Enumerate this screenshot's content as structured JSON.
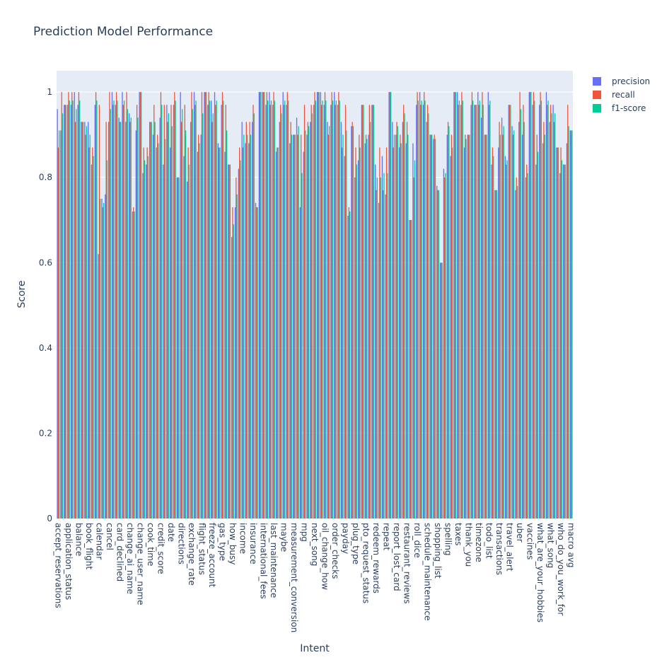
{
  "chart_data": {
    "type": "bar",
    "title": "Prediction Model Performance",
    "xlabel": "Intent",
    "ylabel": "Score",
    "categories": [
      "accept_reservations",
      null,
      null,
      "application_status",
      null,
      null,
      "balance",
      null,
      null,
      "book_flight",
      null,
      null,
      "calendar",
      null,
      null,
      "cancel",
      null,
      null,
      "card_declined",
      null,
      null,
      "change_ai_name",
      null,
      null,
      "change_user_name",
      null,
      null,
      "cook_time",
      null,
      null,
      "credit_score",
      null,
      null,
      "date",
      null,
      null,
      "directions",
      null,
      null,
      "exchange_rate",
      null,
      null,
      "flight_status",
      null,
      null,
      "freeze_account",
      null,
      null,
      "gas_type",
      null,
      null,
      "how_busy",
      null,
      null,
      "income",
      null,
      null,
      "insurance",
      null,
      null,
      "international_fees",
      null,
      null,
      "last_maintenance",
      null,
      null,
      "maybe",
      null,
      null,
      "measurement_conversion",
      null,
      null,
      "mpg",
      null,
      null,
      "next_song",
      null,
      null,
      "oil_change_how",
      null,
      null,
      "order_checks",
      null,
      null,
      "payday",
      null,
      null,
      "plug_type",
      null,
      null,
      "pto_request_status",
      null,
      null,
      "redeem_rewards",
      null,
      null,
      "repeat",
      null,
      null,
      "report_lost_card",
      null,
      null,
      "restaurant_reviews",
      null,
      null,
      "roll_dice",
      null,
      null,
      "schedule_maintenance",
      null,
      null,
      "shopping_list",
      null,
      null,
      "spelling",
      null,
      null,
      "taxes",
      null,
      null,
      "thank_you",
      null,
      null,
      "timezone",
      null,
      null,
      "todo_list",
      null,
      null,
      "transactions",
      null,
      null,
      "travel_alert",
      null,
      null,
      "uber",
      null,
      null,
      "vaccines",
      null,
      null,
      "what_are_your_hobbies",
      null,
      null,
      "what_song",
      null,
      null,
      "who_do_you_work_for",
      null,
      null,
      "macro avg"
    ],
    "series": [
      {
        "name": "precision",
        "color": "#636efa",
        "values": [
          0.96,
          0.91,
          0.97,
          0.97,
          0.97,
          1,
          0.97,
          0.93,
          0.93,
          0.93,
          0.83,
          0.97,
          0.62,
          0.75,
          0.76,
          0.93,
          1,
          0.97,
          0.94,
          1,
          0.93,
          0.95,
          0.72,
          0.91,
          1,
          0.81,
          0.83,
          0.93,
          0.9,
          0.87,
          0.94,
          0.83,
          0.97,
          0.87,
          0.97,
          0.8,
          1,
          0.85,
          0.79,
          0.93,
          1,
          0.86,
          0.9,
          1,
          0.97,
          0.98,
          1,
          0.88,
          0.97,
          0.86,
          0.83,
          0.66,
          0.73,
          0.82,
          0.93,
          0.88,
          0.88,
          0.93,
          0.74,
          1,
          1,
          0.97,
          1,
          0.97,
          0.86,
          0.93,
          1,
          0.97,
          0.88,
          0.9,
          0.94,
          0.73,
          0.86,
          0.9,
          0.93,
          0.97,
          1,
          1,
          0.97,
          0.93,
          0.97,
          1,
          0.97,
          0.93,
          0.85,
          0.71,
          0.92,
          0.8,
          0.84,
          0.97,
          0.88,
          0.9,
          0.97,
          0.83,
          0.74,
          0.85,
          0.76,
          1,
          0.93,
          0.9,
          0.87,
          0.93,
          0.88,
          0.7,
          0.88,
          0.97,
          1,
          0.97,
          0.93,
          0.9,
          0.89,
          0.78,
          0.6,
          0.82,
          0.9,
          0.85,
          1,
          1,
          0.97,
          0.87,
          0.9,
          0.97,
          0.97,
          1,
          0.94,
          0.9,
          1,
          0.83,
          0.77,
          0.87,
          0.94,
          0.85,
          0.97,
          0.92,
          0.77,
          0.93,
          0.9,
          0.8,
          1,
          0.97,
          0.83,
          0.97,
          0.88,
          1,
          0.93,
          0.97,
          0.87,
          0.81,
          0.83,
          0.88,
          0.91
        ]
      },
      {
        "name": "recall",
        "color": "#EF553B",
        "values": [
          0.87,
          1,
          0.97,
          1,
          1,
          0.93,
          1,
          0.93,
          0.9,
          0.87,
          0.87,
          1,
          0.97,
          0.73,
          0.93,
          1,
          0.97,
          1,
          0.93,
          0.97,
          1,
          0.93,
          0.73,
          0.97,
          1,
          0.87,
          0.87,
          0.93,
          0.97,
          0.9,
          1,
          0.97,
          0.93,
          0.97,
          1,
          0.8,
          0.93,
          0.97,
          0.87,
          1,
          0.97,
          0.9,
          1,
          1,
          1,
          0.93,
          0.97,
          0.87,
          1,
          0.97,
          0.83,
          0.73,
          0.8,
          0.87,
          0.87,
          0.93,
          0.93,
          0.97,
          0.73,
          1,
          1,
          1,
          0.97,
          1,
          0.87,
          0.97,
          0.97,
          1,
          0.93,
          0.9,
          0.9,
          0.9,
          0.97,
          0.93,
          0.97,
          1,
          1,
          0.97,
          1,
          0.9,
          1,
          0.97,
          1,
          0.87,
          0.97,
          0.73,
          0.93,
          0.87,
          0.9,
          0.97,
          0.9,
          0.97,
          0.97,
          0.77,
          0.87,
          0.77,
          0.87,
          1,
          0.87,
          0.93,
          0.9,
          0.97,
          0.93,
          0.7,
          0.8,
          1,
          0.97,
          1,
          0.97,
          0.9,
          0.9,
          0.77,
          0.6,
          0.8,
          0.93,
          0.9,
          1,
          0.97,
          1,
          0.9,
          0.9,
          1,
          0.97,
          0.97,
          1,
          0.9,
          0.97,
          0.87,
          0.77,
          0.93,
          0.9,
          0.83,
          0.97,
          0.9,
          0.8,
          1,
          0.97,
          0.83,
          1,
          1,
          0.9,
          1,
          0.93,
          0.97,
          0.97,
          0.93,
          0.87,
          0.87,
          0.83,
          0.97,
          0.91
        ]
      },
      {
        "name": "f1-score",
        "color": "#00cc96",
        "values": [
          0.91,
          0.95,
          0.97,
          0.98,
          0.98,
          0.96,
          0.98,
          0.93,
          0.92,
          0.9,
          0.85,
          0.98,
          0.75,
          0.74,
          0.84,
          0.96,
          0.98,
          0.98,
          0.93,
          0.98,
          0.96,
          0.94,
          0.72,
          0.94,
          1,
          0.84,
          0.85,
          0.93,
          0.93,
          0.88,
          0.97,
          0.89,
          0.95,
          0.92,
          0.98,
          0.8,
          0.96,
          0.91,
          0.83,
          0.96,
          0.98,
          0.88,
          0.95,
          1,
          0.98,
          0.95,
          0.98,
          0.87,
          0.98,
          0.91,
          0.83,
          0.69,
          0.76,
          0.84,
          0.9,
          0.9,
          0.9,
          0.95,
          0.73,
          1,
          1,
          0.98,
          0.98,
          0.98,
          0.87,
          0.95,
          0.98,
          0.98,
          0.9,
          0.9,
          0.92,
          0.81,
          0.91,
          0.92,
          0.95,
          0.98,
          1,
          0.98,
          0.98,
          0.92,
          0.98,
          0.98,
          0.98,
          0.9,
          0.91,
          0.72,
          0.92,
          0.83,
          0.87,
          0.97,
          0.89,
          0.93,
          0.97,
          0.8,
          0.8,
          0.81,
          0.81,
          1,
          0.9,
          0.92,
          0.88,
          0.95,
          0.9,
          0.7,
          0.84,
          0.98,
          0.98,
          0.98,
          0.95,
          0.9,
          0.89,
          0.77,
          0.6,
          0.81,
          0.92,
          0.87,
          1,
          0.98,
          0.98,
          0.89,
          0.9,
          0.98,
          0.97,
          0.98,
          0.97,
          0.9,
          0.98,
          0.85,
          0.77,
          0.9,
          0.92,
          0.84,
          0.97,
          0.91,
          0.78,
          0.96,
          0.93,
          0.81,
          1,
          0.98,
          0.86,
          0.98,
          0.9,
          0.98,
          0.95,
          0.95,
          0.87,
          0.84,
          0.83,
          0.92,
          0.91
        ]
      }
    ],
    "ylim": [
      0,
      1.05
    ],
    "yticks": [
      0,
      0.2,
      0.4,
      0.6,
      0.8,
      1
    ],
    "grid": true,
    "legend": "right"
  }
}
